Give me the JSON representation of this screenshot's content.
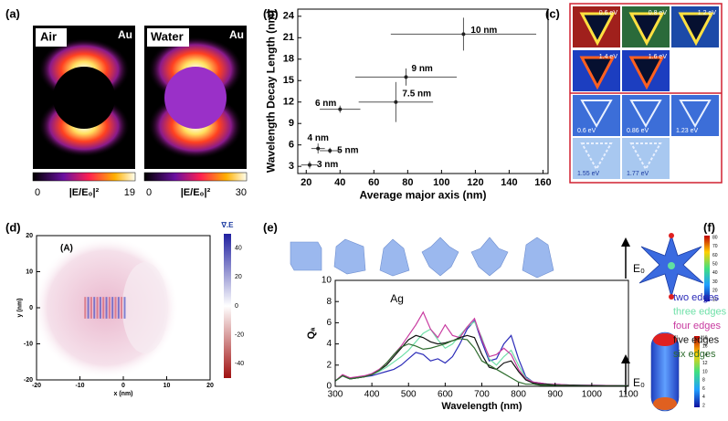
{
  "panels": {
    "labels": [
      "(a)",
      "(b)",
      "(c)",
      "(d)",
      "(e)",
      "(f)"
    ],
    "a": {
      "images": [
        {
          "medium": "Air",
          "metal": "Au",
          "cbar_min": 0,
          "cbar_label": "|E/E₀|²",
          "cbar_max": 19
        },
        {
          "medium": "Water",
          "metal": "Au",
          "cbar_min": 0,
          "cbar_label": "|E/E₀|²",
          "cbar_max": 30
        }
      ]
    },
    "c": {
      "top": [
        "0.6 eV",
        "0.8 eV",
        "1.2 eV",
        "1.4 eV",
        "1.6 eV"
      ],
      "bottom": [
        "0.6 eV",
        "0.86 eV",
        "1.23 eV",
        "1.55 eV",
        "1.77 eV"
      ]
    },
    "f": {
      "field": [
        "E₀",
        "E₀"
      ],
      "cbar_top": [
        80,
        70,
        60,
        50,
        40,
        30,
        20,
        10
      ],
      "cbar_bottom": [
        18,
        16,
        14,
        12,
        10,
        8,
        6,
        4,
        2
      ]
    }
  },
  "chart_data": [
    {
      "type": "scatter",
      "xlabel": "Average major axis (nm)",
      "ylabel": "Wavelength Decay Length (nm)",
      "x": [
        22,
        27,
        34,
        40,
        73,
        79,
        113
      ],
      "values": [
        3.2,
        5.5,
        5.2,
        11,
        12,
        15.5,
        21.5
      ],
      "xerr": [
        5,
        4,
        6,
        12,
        22,
        30,
        43
      ],
      "yerr": [
        0.5,
        0.7,
        0.4,
        0.5,
        2.8,
        1.2,
        2.3
      ],
      "point_labels": [
        "3 nm",
        "4 nm",
        "5 nm",
        "6 nm",
        "7.5 nm",
        "9 nm",
        "10 nm"
      ],
      "color": "#222222",
      "xlim": [
        15,
        163
      ],
      "ylim": [
        2,
        25
      ],
      "xticks": [
        20,
        40,
        60,
        80,
        100,
        120,
        140,
        160
      ],
      "yticks": [
        3,
        6,
        9,
        12,
        15,
        18,
        21,
        24
      ]
    },
    {
      "type": "heatmap",
      "xlabel": "x (nm)",
      "ylabel": "y (nm)",
      "annotation": "(A)",
      "colorbar_label": "∇.E",
      "xlim": [
        -20,
        20
      ],
      "ylim": [
        -20,
        20
      ],
      "xticks": [
        -20,
        -10,
        0,
        10,
        20
      ],
      "yticks": [
        -20,
        -10,
        0,
        10,
        20
      ],
      "clim": [
        -50,
        50
      ],
      "cticks": [
        -40,
        -20,
        0,
        20,
        40
      ]
    },
    {
      "type": "line",
      "xlabel": "Wavelength (nm)",
      "ylabel": "Qₐ",
      "annotation": "Ag",
      "x": [
        300,
        320,
        340,
        360,
        380,
        400,
        420,
        440,
        460,
        480,
        500,
        520,
        540,
        560,
        580,
        600,
        620,
        640,
        660,
        680,
        700,
        720,
        740,
        760,
        780,
        800,
        820,
        840,
        860,
        880,
        900,
        950,
        1000,
        1100
      ],
      "series": [
        {
          "name": "two edges",
          "color": "#2b2bb8",
          "values": [
            0.5,
            1.0,
            0.7,
            0.8,
            0.9,
            1.0,
            1.2,
            1.4,
            1.6,
            2.0,
            2.6,
            3.2,
            3.0,
            2.4,
            2.6,
            2.2,
            2.8,
            4.0,
            5.4,
            6.2,
            4.2,
            2.4,
            2.6,
            4.0,
            4.8,
            2.6,
            0.9,
            0.4,
            0.3,
            0.2,
            0.2,
            0.1,
            0.1,
            0.05
          ]
        },
        {
          "name": "three edges",
          "color": "#6fe0a8",
          "values": [
            0.5,
            1.0,
            0.7,
            0.8,
            0.9,
            1.1,
            1.4,
            1.8,
            2.3,
            2.8,
            3.4,
            4.2,
            5.0,
            5.4,
            4.4,
            3.6,
            4.0,
            4.8,
            5.6,
            6.1,
            4.6,
            2.6,
            2.0,
            2.8,
            3.4,
            2.0,
            0.8,
            0.4,
            0.3,
            0.2,
            0.2,
            0.1,
            0.1,
            0.05
          ]
        },
        {
          "name": "four edges",
          "color": "#c83aa0",
          "values": [
            0.5,
            1.1,
            0.8,
            0.9,
            1.0,
            1.2,
            1.6,
            2.2,
            3.0,
            3.8,
            4.8,
            5.8,
            7.0,
            5.4,
            4.6,
            5.8,
            4.8,
            4.6,
            5.6,
            6.4,
            4.4,
            2.8,
            3.0,
            3.6,
            3.0,
            1.6,
            0.7,
            0.4,
            0.3,
            0.2,
            0.2,
            0.1,
            0.1,
            0.05
          ]
        },
        {
          "name": "five edges",
          "color": "#111111",
          "values": [
            0.5,
            1.0,
            0.7,
            0.8,
            0.9,
            1.1,
            1.5,
            2.0,
            2.8,
            3.6,
            4.4,
            4.8,
            4.6,
            4.2,
            4.0,
            4.1,
            4.3,
            4.6,
            4.8,
            4.6,
            3.0,
            1.8,
            1.6,
            2.2,
            2.4,
            1.4,
            0.6,
            0.3,
            0.2,
            0.2,
            0.1,
            0.1,
            0.05,
            0.05
          ]
        },
        {
          "name": "six edges",
          "color": "#2f6d2f",
          "values": [
            0.5,
            1.0,
            0.7,
            0.8,
            0.9,
            1.1,
            1.5,
            2.2,
            3.0,
            3.7,
            4.0,
            3.8,
            3.5,
            3.6,
            3.8,
            4.0,
            4.3,
            4.5,
            4.4,
            3.6,
            2.4,
            2.0,
            1.6,
            1.2,
            0.8,
            0.4,
            0.2,
            0.2,
            0.1,
            0.1,
            0.1,
            0.05,
            0.05,
            0.05
          ]
        }
      ],
      "xlim": [
        300,
        1100
      ],
      "ylim": [
        0,
        10
      ],
      "xticks": [
        300,
        400,
        500,
        600,
        700,
        800,
        900,
        1000,
        1100
      ],
      "yticks": [
        0,
        2,
        4,
        6,
        8,
        10
      ]
    }
  ]
}
